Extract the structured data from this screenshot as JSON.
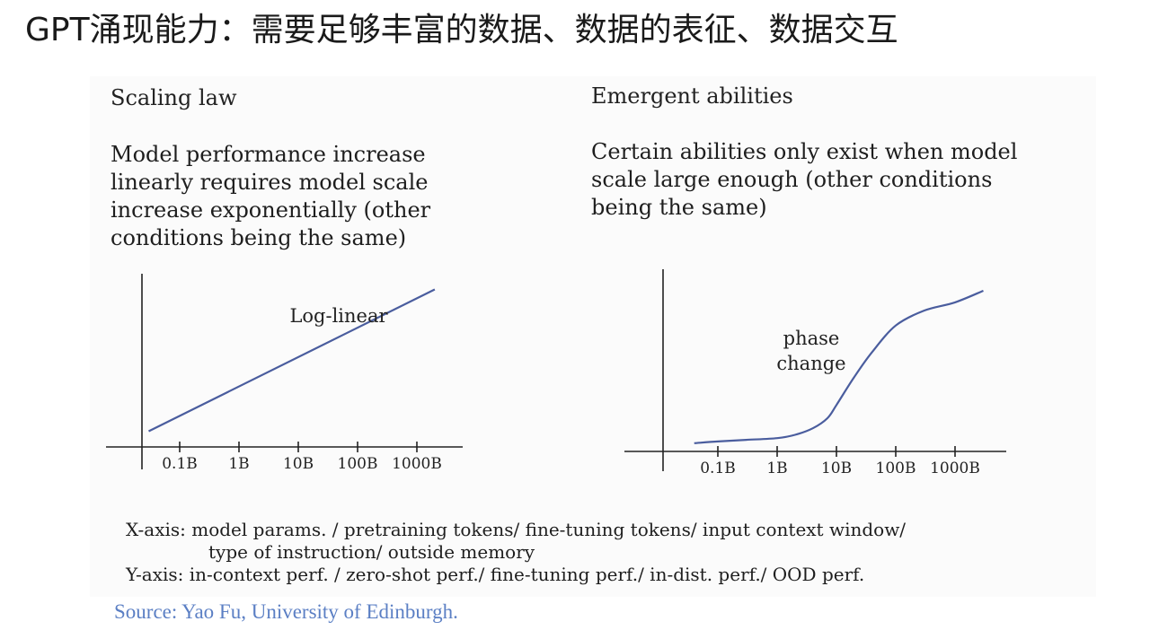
{
  "slide": {
    "title": "GPT涌现能力：需要足够丰富的数据、数据的表征、数据交互"
  },
  "left_panel": {
    "heading": "Scaling law",
    "description": [
      "Model performance increase",
      "linearly requires model scale",
      "increase exponentially (other",
      "conditions being the same)"
    ]
  },
  "right_panel": {
    "heading": "Emergent abilities",
    "description": [
      "Certain abilities only exist when model",
      "scale large enough (other conditions",
      "being the same)"
    ]
  },
  "chart_data": [
    {
      "type": "line",
      "title": "",
      "xlabel": "",
      "ylabel": "",
      "x_scale": "log",
      "categories": [
        "0.1B",
        "1B",
        "10B",
        "100B",
        "1000B"
      ],
      "annotation": "Log-linear",
      "series": [
        {
          "points": [
            [
              0.03,
              0.1
            ],
            [
              2000,
              1.0
            ]
          ]
        }
      ],
      "ylim": [
        0,
        1.1
      ],
      "grid": false,
      "color": "#4a5d9e"
    },
    {
      "type": "line",
      "title": "",
      "xlabel": "",
      "ylabel": "",
      "x_scale": "log",
      "categories": [
        "0.1B",
        "1B",
        "10B",
        "100B",
        "1000B"
      ],
      "annotation": [
        "phase",
        "change"
      ],
      "series": [
        {
          "points": [
            [
              0.04,
              0.05
            ],
            [
              0.1,
              0.06
            ],
            [
              0.3,
              0.07
            ],
            [
              1,
              0.08
            ],
            [
              2,
              0.1
            ],
            [
              4,
              0.14
            ],
            [
              7,
              0.2
            ],
            [
              10,
              0.28
            ],
            [
              20,
              0.45
            ],
            [
              40,
              0.6
            ],
            [
              100,
              0.76
            ],
            [
              300,
              0.85
            ],
            [
              1000,
              0.9
            ],
            [
              3000,
              0.97
            ]
          ]
        }
      ],
      "ylim": [
        0,
        1.1
      ],
      "grid": false,
      "color": "#4a5d9e"
    }
  ],
  "axis_notes": {
    "x_line1": "X-axis: model params. / pretraining tokens/ fine-tuning tokens/ input context window/",
    "x_line2": "type of instruction/ outside memory",
    "y_line": "Y-axis: in-context perf. / zero-shot perf./ fine-tuning perf./ in-dist. perf./ OOD perf."
  },
  "source": "Source: Yao Fu, University of Edinburgh."
}
